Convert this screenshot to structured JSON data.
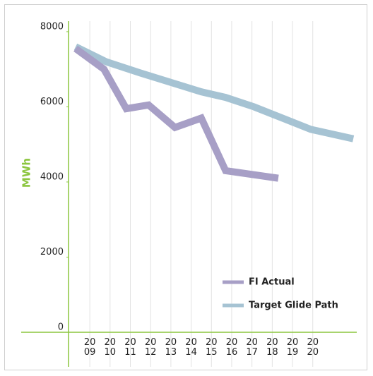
{
  "chart_data": {
    "type": "line",
    "y_label": "MWh",
    "xlim": [
      2007.95,
      2022.17
    ],
    "ylim": [
      0,
      8280
    ],
    "yticks": [
      0,
      2000,
      4000,
      6000,
      8000
    ],
    "xticks": [
      {
        "value": 2009,
        "label": "20\n09"
      },
      {
        "value": 2010,
        "label": "20\n10"
      },
      {
        "value": 2011,
        "label": "20\n11"
      },
      {
        "value": 2012,
        "label": "20\n12"
      },
      {
        "value": 2013,
        "label": "20\n13"
      },
      {
        "value": 2014,
        "label": "20\n14"
      },
      {
        "value": 2015,
        "label": "20\n15"
      },
      {
        "value": 2016,
        "label": "20\n16"
      },
      {
        "value": 2017,
        "label": "20\n17"
      },
      {
        "value": 2018,
        "label": "20\n18"
      },
      {
        "value": 2019,
        "label": "20\n19"
      },
      {
        "value": 2020,
        "label": "20\n20"
      }
    ],
    "grid": true,
    "series": [
      {
        "name": "FI Actual",
        "color": "#a79fc6",
        "x": [
          2008.3,
          2009.7,
          2010.8,
          2011.9,
          2013.2,
          2014.5,
          2015.7,
          2018.3
        ],
        "values": [
          7550,
          7000,
          5950,
          6050,
          5450,
          5700,
          4300,
          4100
        ]
      },
      {
        "name": "Target Glide Path",
        "color": "#a6c3d3",
        "x": [
          2008.3,
          2009.8,
          2011.5,
          2013.3,
          2014.5,
          2015.7,
          2017.1,
          2018.5,
          2019.9,
          2022.0
        ],
        "values": [
          7600,
          7200,
          6900,
          6600,
          6400,
          6250,
          6000,
          5700,
          5400,
          5150
        ]
      }
    ]
  }
}
